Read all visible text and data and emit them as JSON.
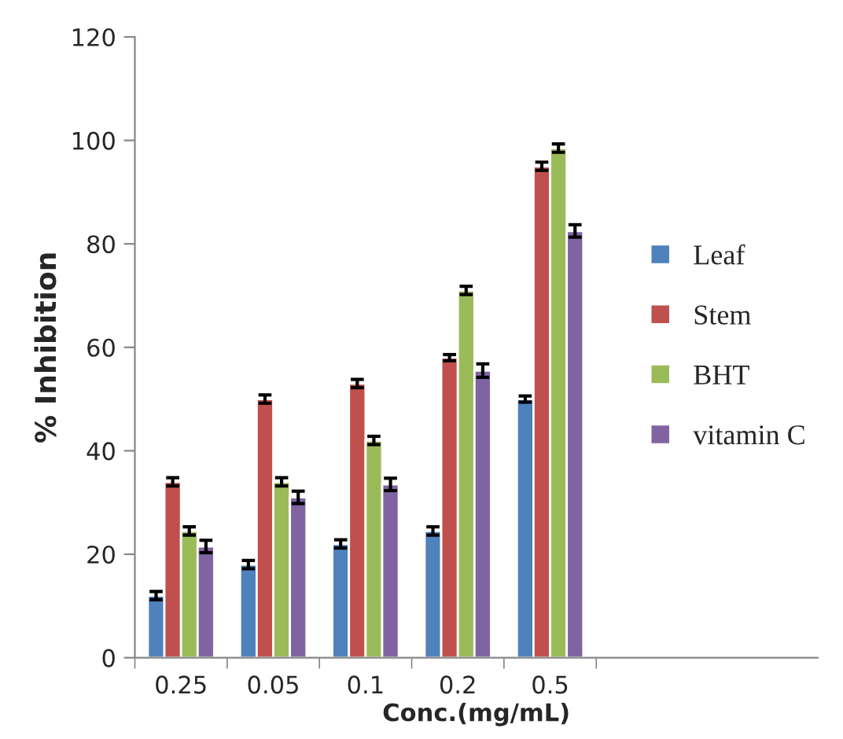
{
  "chart_data": {
    "type": "bar",
    "xlabel": "Conc.(mg/mL)",
    "ylabel": "% Inhibition",
    "categories": [
      "0.25",
      "0.05",
      "0.1",
      "0.2",
      "0.5"
    ],
    "series": [
      {
        "name": "Leaf",
        "color": "#4f81bd",
        "values": [
          12,
          18,
          22,
          24.5,
          50
        ],
        "errors": [
          0.8,
          0.8,
          0.8,
          0.8,
          0.6
        ]
      },
      {
        "name": "Stem",
        "color": "#c0504d",
        "values": [
          34,
          50,
          53,
          58,
          95
        ],
        "errors": [
          0.8,
          0.8,
          0.8,
          0.6,
          0.8
        ]
      },
      {
        "name": "BHT",
        "color": "#9bbb59",
        "values": [
          24.5,
          34,
          42,
          71,
          98.5
        ],
        "errors": [
          0.8,
          0.8,
          0.8,
          0.8,
          0.8
        ]
      },
      {
        "name": "vitamin C",
        "color": "#8064a2",
        "values": [
          21.5,
          31,
          33.5,
          55.5,
          82.5
        ],
        "errors": [
          1.2,
          1.2,
          1.2,
          1.3,
          1.2
        ]
      }
    ],
    "ylim": [
      0,
      120
    ],
    "yticks": [
      0,
      20,
      40,
      60,
      80,
      100,
      120
    ],
    "grid": false,
    "legend": "right"
  }
}
